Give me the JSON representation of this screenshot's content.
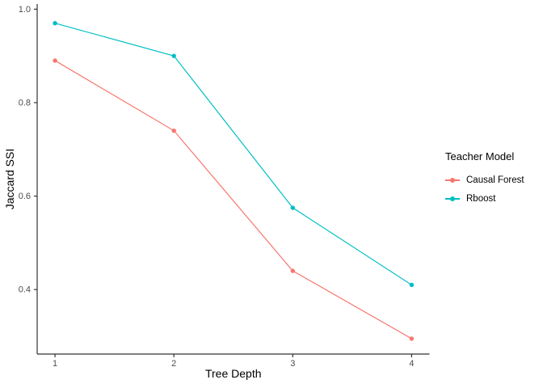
{
  "figure": {
    "background": "#ffffff"
  },
  "chart_data": {
    "type": "line",
    "title": "",
    "xlabel": "Tree Depth",
    "ylabel": "Jaccard SSI",
    "x": [
      1,
      2,
      3,
      4
    ],
    "series": [
      {
        "name": "Causal Forest",
        "color": "#F8766D",
        "values": [
          0.89,
          0.74,
          0.44,
          0.295
        ]
      },
      {
        "name": "Rboost",
        "color": "#00BFC4",
        "values": [
          0.97,
          0.9,
          0.575,
          0.41
        ]
      }
    ],
    "xlim": [
      0.85,
      4.15
    ],
    "ylim": [
      0.262,
      1.011
    ],
    "x_ticks": [
      1,
      2,
      3,
      4
    ],
    "x_tick_labels": [
      "1",
      "2",
      "3",
      "4"
    ],
    "y_ticks": [
      0.4,
      0.6,
      0.8,
      1.0
    ],
    "y_tick_labels": [
      "0.4",
      "0.6",
      "0.8",
      "1.0"
    ],
    "grid": false,
    "legend_position": "right",
    "legend_title": "Teacher Model",
    "marker": "circle",
    "style": "ggplot-theme-classic"
  },
  "legend": {
    "title": "Teacher Model",
    "items": [
      {
        "label": "Causal Forest",
        "color": "#F8766D"
      },
      {
        "label": "Rboost",
        "color": "#00BFC4"
      }
    ]
  },
  "colors": {
    "axis_line": "#333333",
    "tick_mark": "#333333",
    "tick_label": "#4D4D4D",
    "axis_title": "#000000",
    "background": "#ffffff"
  }
}
